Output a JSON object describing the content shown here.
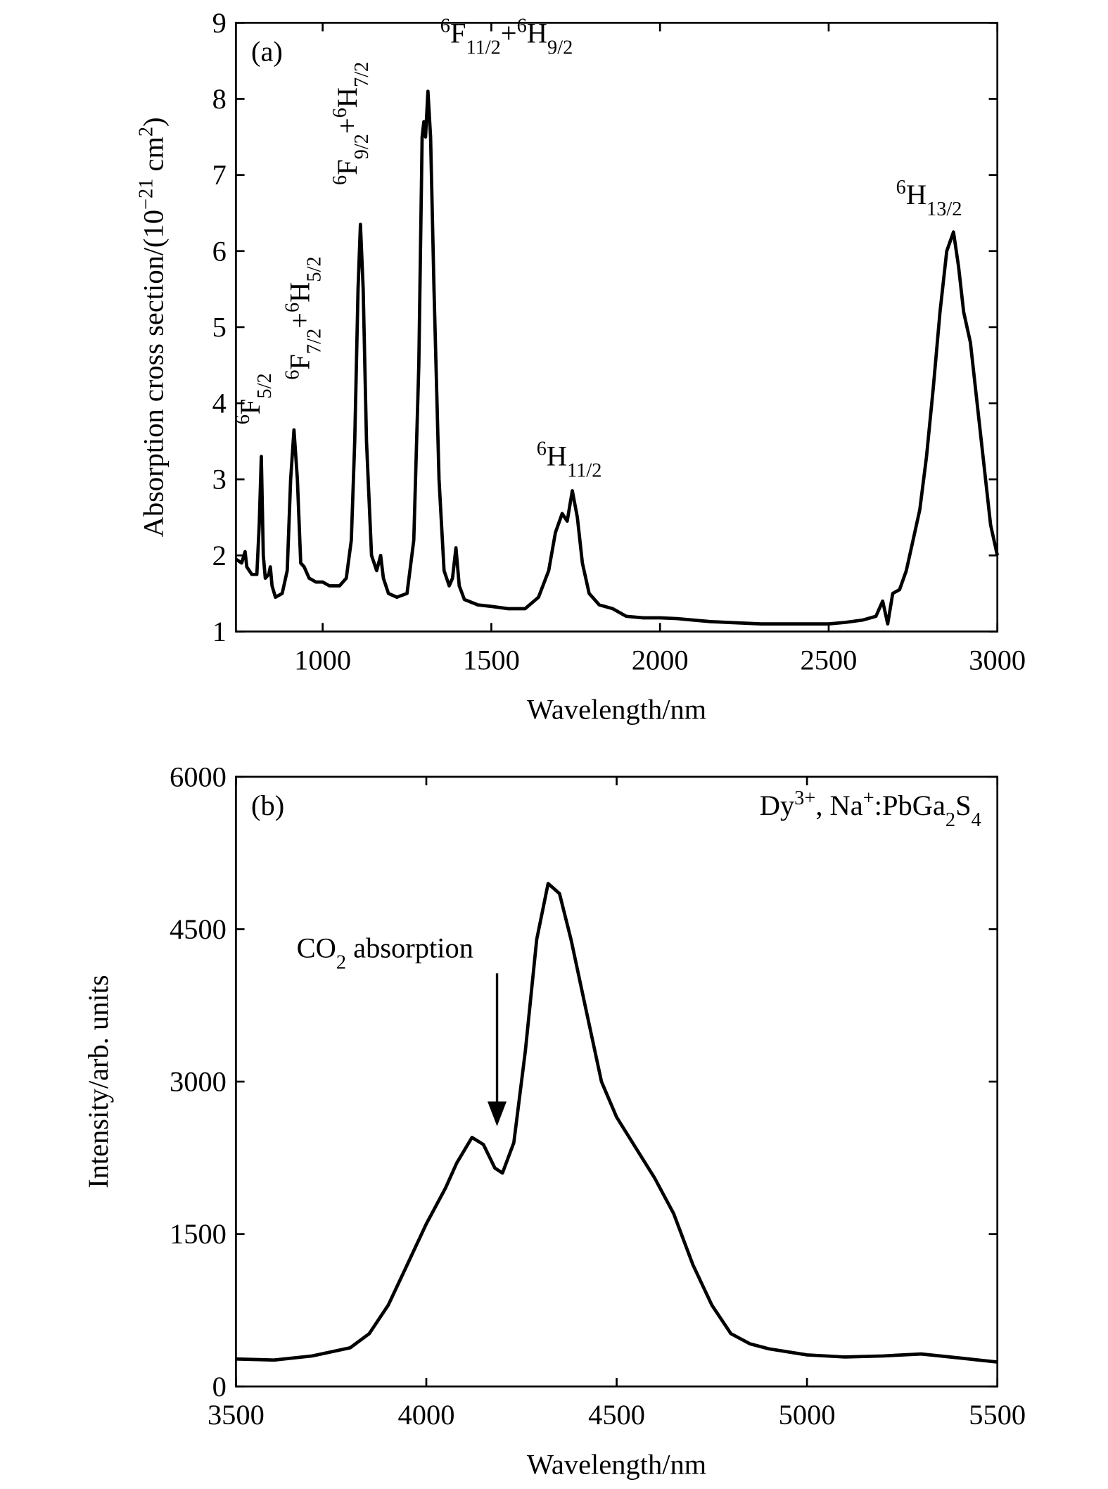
{
  "chart_data": [
    {
      "type": "line",
      "color": "#000000",
      "panel": "(a)",
      "xlabel": "Wavelength/nm",
      "ylabel": [
        {
          "text": "Absorption cross section/(10"
        },
        {
          "text": "−21",
          "shift": "super"
        },
        {
          "text": " cm"
        },
        {
          "text": "2",
          "shift": "super"
        },
        {
          "text": ")"
        }
      ],
      "xlim": [
        743,
        3000
      ],
      "xticks": [
        1000,
        1500,
        2000,
        2500,
        3000
      ],
      "ylim": [
        1,
        9
      ],
      "yticks": [
        1,
        2,
        3,
        4,
        5,
        6,
        7,
        8,
        9
      ],
      "annotations": [
        {
          "parts": [
            {
              "text": "6",
              "shift": "super"
            },
            {
              "text": "F"
            },
            {
              "text": "5/2",
              "shift": "sub"
            }
          ]
        },
        {
          "parts": [
            {
              "text": "6",
              "shift": "super"
            },
            {
              "text": "F"
            },
            {
              "text": "7/2",
              "shift": "sub"
            },
            {
              "text": "+"
            },
            {
              "text": "6",
              "shift": "super"
            },
            {
              "text": "H"
            },
            {
              "text": "5/2",
              "shift": "sub"
            }
          ]
        },
        {
          "parts": [
            {
              "text": "6",
              "shift": "super"
            },
            {
              "text": "F"
            },
            {
              "text": "9/2",
              "shift": "sub"
            },
            {
              "text": "+"
            },
            {
              "text": "6",
              "shift": "super"
            },
            {
              "text": "H"
            },
            {
              "text": "7/2",
              "shift": "sub"
            }
          ]
        },
        {
          "parts": [
            {
              "text": "6",
              "shift": "super"
            },
            {
              "text": "F"
            },
            {
              "text": "11/2",
              "shift": "sub"
            },
            {
              "text": "+"
            },
            {
              "text": "6",
              "shift": "super"
            },
            {
              "text": "H"
            },
            {
              "text": "9/2",
              "shift": "sub"
            }
          ]
        },
        {
          "parts": [
            {
              "text": "6",
              "shift": "super"
            },
            {
              "text": "H"
            },
            {
              "text": "11/2",
              "shift": "sub"
            }
          ]
        },
        {
          "parts": [
            {
              "text": "6",
              "shift": "super"
            },
            {
              "text": "H"
            },
            {
              "text": "13/2",
              "shift": "sub"
            }
          ]
        }
      ],
      "x": [
        743,
        760,
        770,
        775,
        790,
        805,
        812,
        818,
        824,
        830,
        840,
        845,
        850,
        860,
        880,
        895,
        905,
        915,
        925,
        935,
        945,
        960,
        980,
        1000,
        1020,
        1050,
        1070,
        1085,
        1095,
        1105,
        1112,
        1120,
        1130,
        1145,
        1160,
        1172,
        1180,
        1195,
        1220,
        1250,
        1270,
        1285,
        1295,
        1300,
        1305,
        1312,
        1320,
        1330,
        1345,
        1360,
        1375,
        1385,
        1395,
        1405,
        1420,
        1460,
        1500,
        1550,
        1600,
        1640,
        1670,
        1690,
        1710,
        1725,
        1740,
        1755,
        1770,
        1790,
        1820,
        1860,
        1900,
        1950,
        2000,
        2050,
        2100,
        2150,
        2200,
        2300,
        2400,
        2500,
        2550,
        2600,
        2640,
        2660,
        2675,
        2690,
        2710,
        2730,
        2750,
        2770,
        2790,
        2810,
        2830,
        2850,
        2870,
        2885,
        2900,
        2920,
        2940,
        2960,
        2980,
        3000
      ],
      "values": [
        1.95,
        1.9,
        2.05,
        1.85,
        1.75,
        1.75,
        2.4,
        3.3,
        2.0,
        1.7,
        1.75,
        1.85,
        1.6,
        1.45,
        1.5,
        1.8,
        3.0,
        3.65,
        3.0,
        1.9,
        1.85,
        1.7,
        1.65,
        1.65,
        1.6,
        1.6,
        1.7,
        2.2,
        3.5,
        5.5,
        6.35,
        5.5,
        3.5,
        2.0,
        1.8,
        2.0,
        1.7,
        1.5,
        1.45,
        1.5,
        2.2,
        4.5,
        7.5,
        7.7,
        7.5,
        8.1,
        7.5,
        5.5,
        3.0,
        1.8,
        1.6,
        1.7,
        2.1,
        1.6,
        1.42,
        1.35,
        1.33,
        1.3,
        1.3,
        1.45,
        1.8,
        2.3,
        2.55,
        2.45,
        2.85,
        2.5,
        1.9,
        1.5,
        1.35,
        1.3,
        1.2,
        1.18,
        1.18,
        1.17,
        1.15,
        1.13,
        1.12,
        1.1,
        1.1,
        1.1,
        1.12,
        1.15,
        1.2,
        1.4,
        1.1,
        1.5,
        1.55,
        1.8,
        2.2,
        2.6,
        3.3,
        4.2,
        5.2,
        6.0,
        6.25,
        5.8,
        5.2,
        4.8,
        4.0,
        3.2,
        2.4,
        2.0
      ]
    },
    {
      "type": "line",
      "color": "#000000",
      "panel": "(b)",
      "xlabel": "Wavelength/nm",
      "ylabel": [
        {
          "text": "Intensity/arb. units"
        }
      ],
      "xlim": [
        3500,
        5500
      ],
      "xticks": [
        3500,
        4000,
        4500,
        5000,
        5500
      ],
      "ylim": [
        0,
        6000
      ],
      "yticks": [
        0,
        1500,
        3000,
        4500,
        6000
      ],
      "annotations": [
        {
          "parts": [
            {
              "text": "Dy"
            },
            {
              "text": "3+",
              "shift": "super"
            },
            {
              "text": ", Na"
            },
            {
              "text": "+",
              "shift": "super"
            },
            {
              "text": ":PbGa"
            },
            {
              "text": "2",
              "shift": "sub"
            },
            {
              "text": "S"
            },
            {
              "text": "4",
              "shift": "sub"
            }
          ]
        },
        {
          "parts": [
            {
              "text": "CO"
            },
            {
              "text": "2",
              "shift": "sub"
            },
            {
              "text": " absorption"
            }
          ]
        }
      ],
      "x": [
        3500,
        3600,
        3700,
        3800,
        3850,
        3900,
        3950,
        4000,
        4050,
        4080,
        4120,
        4150,
        4180,
        4200,
        4230,
        4260,
        4290,
        4320,
        4350,
        4380,
        4420,
        4460,
        4500,
        4550,
        4600,
        4650,
        4700,
        4750,
        4800,
        4850,
        4900,
        5000,
        5100,
        5200,
        5300,
        5400,
        5500
      ],
      "values": [
        270,
        260,
        300,
        380,
        520,
        800,
        1200,
        1600,
        1950,
        2200,
        2450,
        2380,
        2150,
        2100,
        2400,
        3300,
        4400,
        4950,
        4850,
        4400,
        3700,
        3000,
        2650,
        2350,
        2050,
        1700,
        1200,
        800,
        520,
        420,
        370,
        310,
        290,
        300,
        320,
        280,
        240
      ]
    }
  ]
}
